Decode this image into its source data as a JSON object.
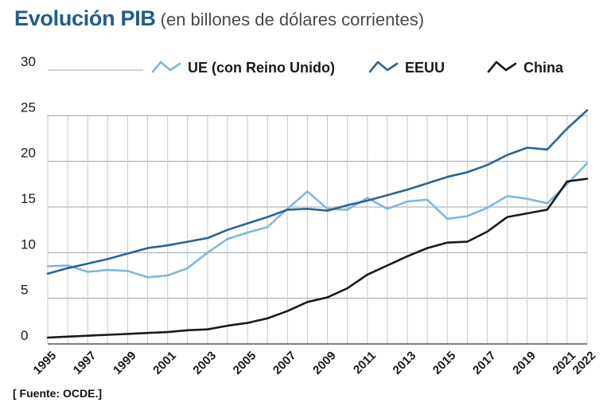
{
  "title": {
    "main": "Evolución PIB",
    "sub": "(en billones de dólares corrientes)"
  },
  "source": "[ Fuente: OCDE.]",
  "chart_data": {
    "type": "line",
    "title": "Evolución PIB",
    "subtitle": "(en billones de dólares corrientes)",
    "xlabel": "",
    "ylabel": "",
    "ylim": [
      0,
      30
    ],
    "yticks": [
      0,
      5,
      10,
      15,
      20,
      25,
      30
    ],
    "grid": true,
    "legend_position": "top",
    "x": [
      1995,
      1996,
      1997,
      1998,
      1999,
      2000,
      2001,
      2002,
      2003,
      2004,
      2005,
      2006,
      2007,
      2008,
      2009,
      2010,
      2011,
      2012,
      2013,
      2014,
      2015,
      2016,
      2017,
      2018,
      2019,
      2020,
      2021,
      2022
    ],
    "xtick_labels": [
      "1995",
      "1997",
      "1999",
      "2001",
      "2003",
      "2005",
      "2007",
      "2009",
      "2011",
      "2013",
      "2015",
      "2017",
      "2019",
      "2021",
      "2022"
    ],
    "series": [
      {
        "name": "UE (con Reino Unido)",
        "color": "#7fb8dc",
        "values": [
          8.5,
          8.6,
          7.9,
          8.1,
          8.0,
          7.3,
          7.5,
          8.3,
          10.0,
          11.5,
          12.2,
          12.8,
          14.8,
          16.7,
          14.8,
          14.7,
          16.0,
          14.8,
          15.6,
          15.8,
          13.7,
          14.0,
          14.9,
          16.2,
          15.9,
          15.4,
          17.5,
          19.8
        ]
      },
      {
        "name": "EEUU",
        "color": "#2a6494",
        "values": [
          7.7,
          8.3,
          8.8,
          9.3,
          9.9,
          10.5,
          10.8,
          11.2,
          11.6,
          12.5,
          13.2,
          13.9,
          14.7,
          14.8,
          14.6,
          15.2,
          15.7,
          16.3,
          16.9,
          17.6,
          18.3,
          18.8,
          19.6,
          20.7,
          21.5,
          21.3,
          23.6,
          25.6
        ]
      },
      {
        "name": "China",
        "color": "#1a1a1a",
        "values": [
          0.7,
          0.8,
          0.9,
          1.0,
          1.1,
          1.2,
          1.3,
          1.5,
          1.6,
          2.0,
          2.3,
          2.8,
          3.6,
          4.6,
          5.1,
          6.1,
          7.6,
          8.6,
          9.6,
          10.5,
          11.1,
          11.2,
          12.3,
          13.9,
          14.3,
          14.7,
          17.8,
          18.1
        ]
      }
    ]
  }
}
